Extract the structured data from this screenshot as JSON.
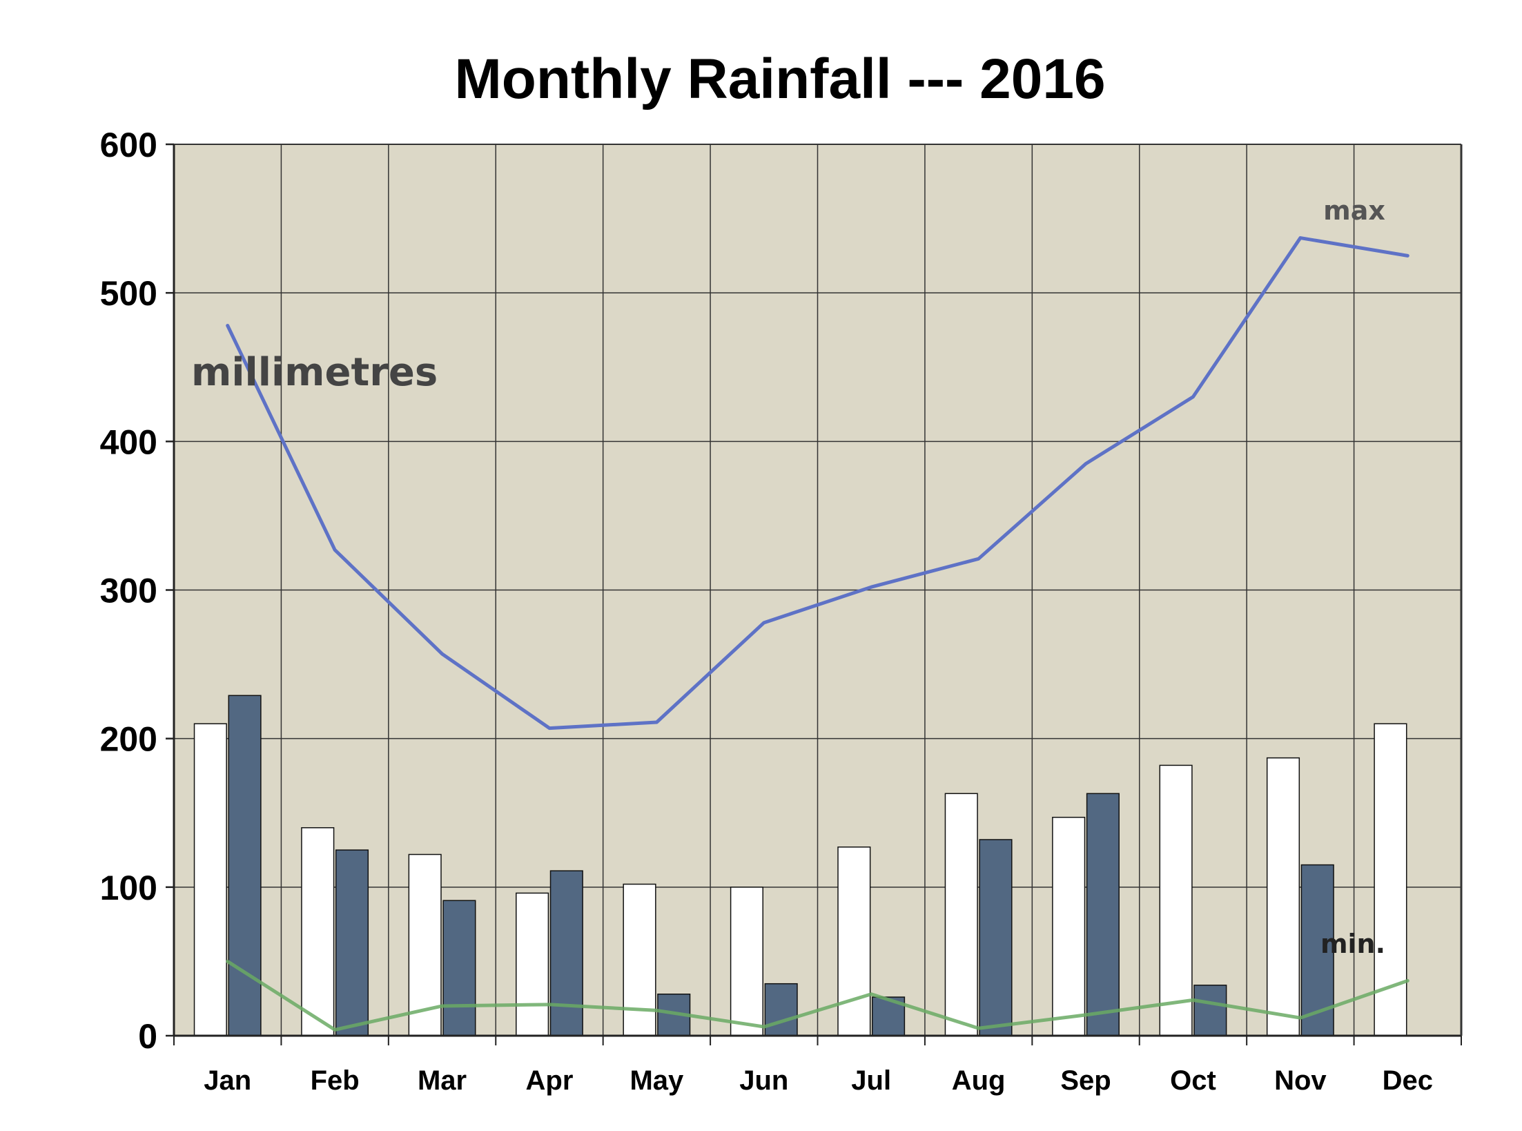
{
  "chart_data": {
    "type": "bar",
    "title": "Monthly Rainfall --- 2016",
    "unit_label": "millimetres",
    "categories": [
      "Jan",
      "Feb",
      "Mar",
      "Apr",
      "May",
      "Jun",
      "Jul",
      "Aug",
      "Sep",
      "Oct",
      "Nov",
      "Dec"
    ],
    "ylim": [
      0,
      600
    ],
    "yticks": [
      0,
      100,
      200,
      300,
      400,
      500,
      600
    ],
    "grid": true,
    "bar_series": [
      {
        "values": [
          210,
          140,
          122,
          96,
          102,
          100,
          127,
          163,
          147,
          182,
          187,
          210
        ],
        "color": "#ffffff"
      },
      {
        "values": [
          229,
          125,
          91,
          111,
          28,
          35,
          26,
          132,
          163,
          34,
          115,
          null
        ],
        "color": "#526882"
      }
    ],
    "line_series": [
      {
        "name": "max",
        "values": [
          478,
          327,
          257,
          207,
          211,
          278,
          302,
          321,
          385,
          430,
          537,
          525
        ],
        "color": "#5e72c6"
      },
      {
        "name": "min.",
        "values": [
          50,
          4,
          20,
          21,
          17,
          6,
          28,
          5,
          14,
          24,
          12,
          37
        ],
        "color": "#6aaa64"
      }
    ],
    "colors": {
      "plot_background": "#dcd8c7",
      "grid": "#333333",
      "axis": "#222222"
    }
  }
}
